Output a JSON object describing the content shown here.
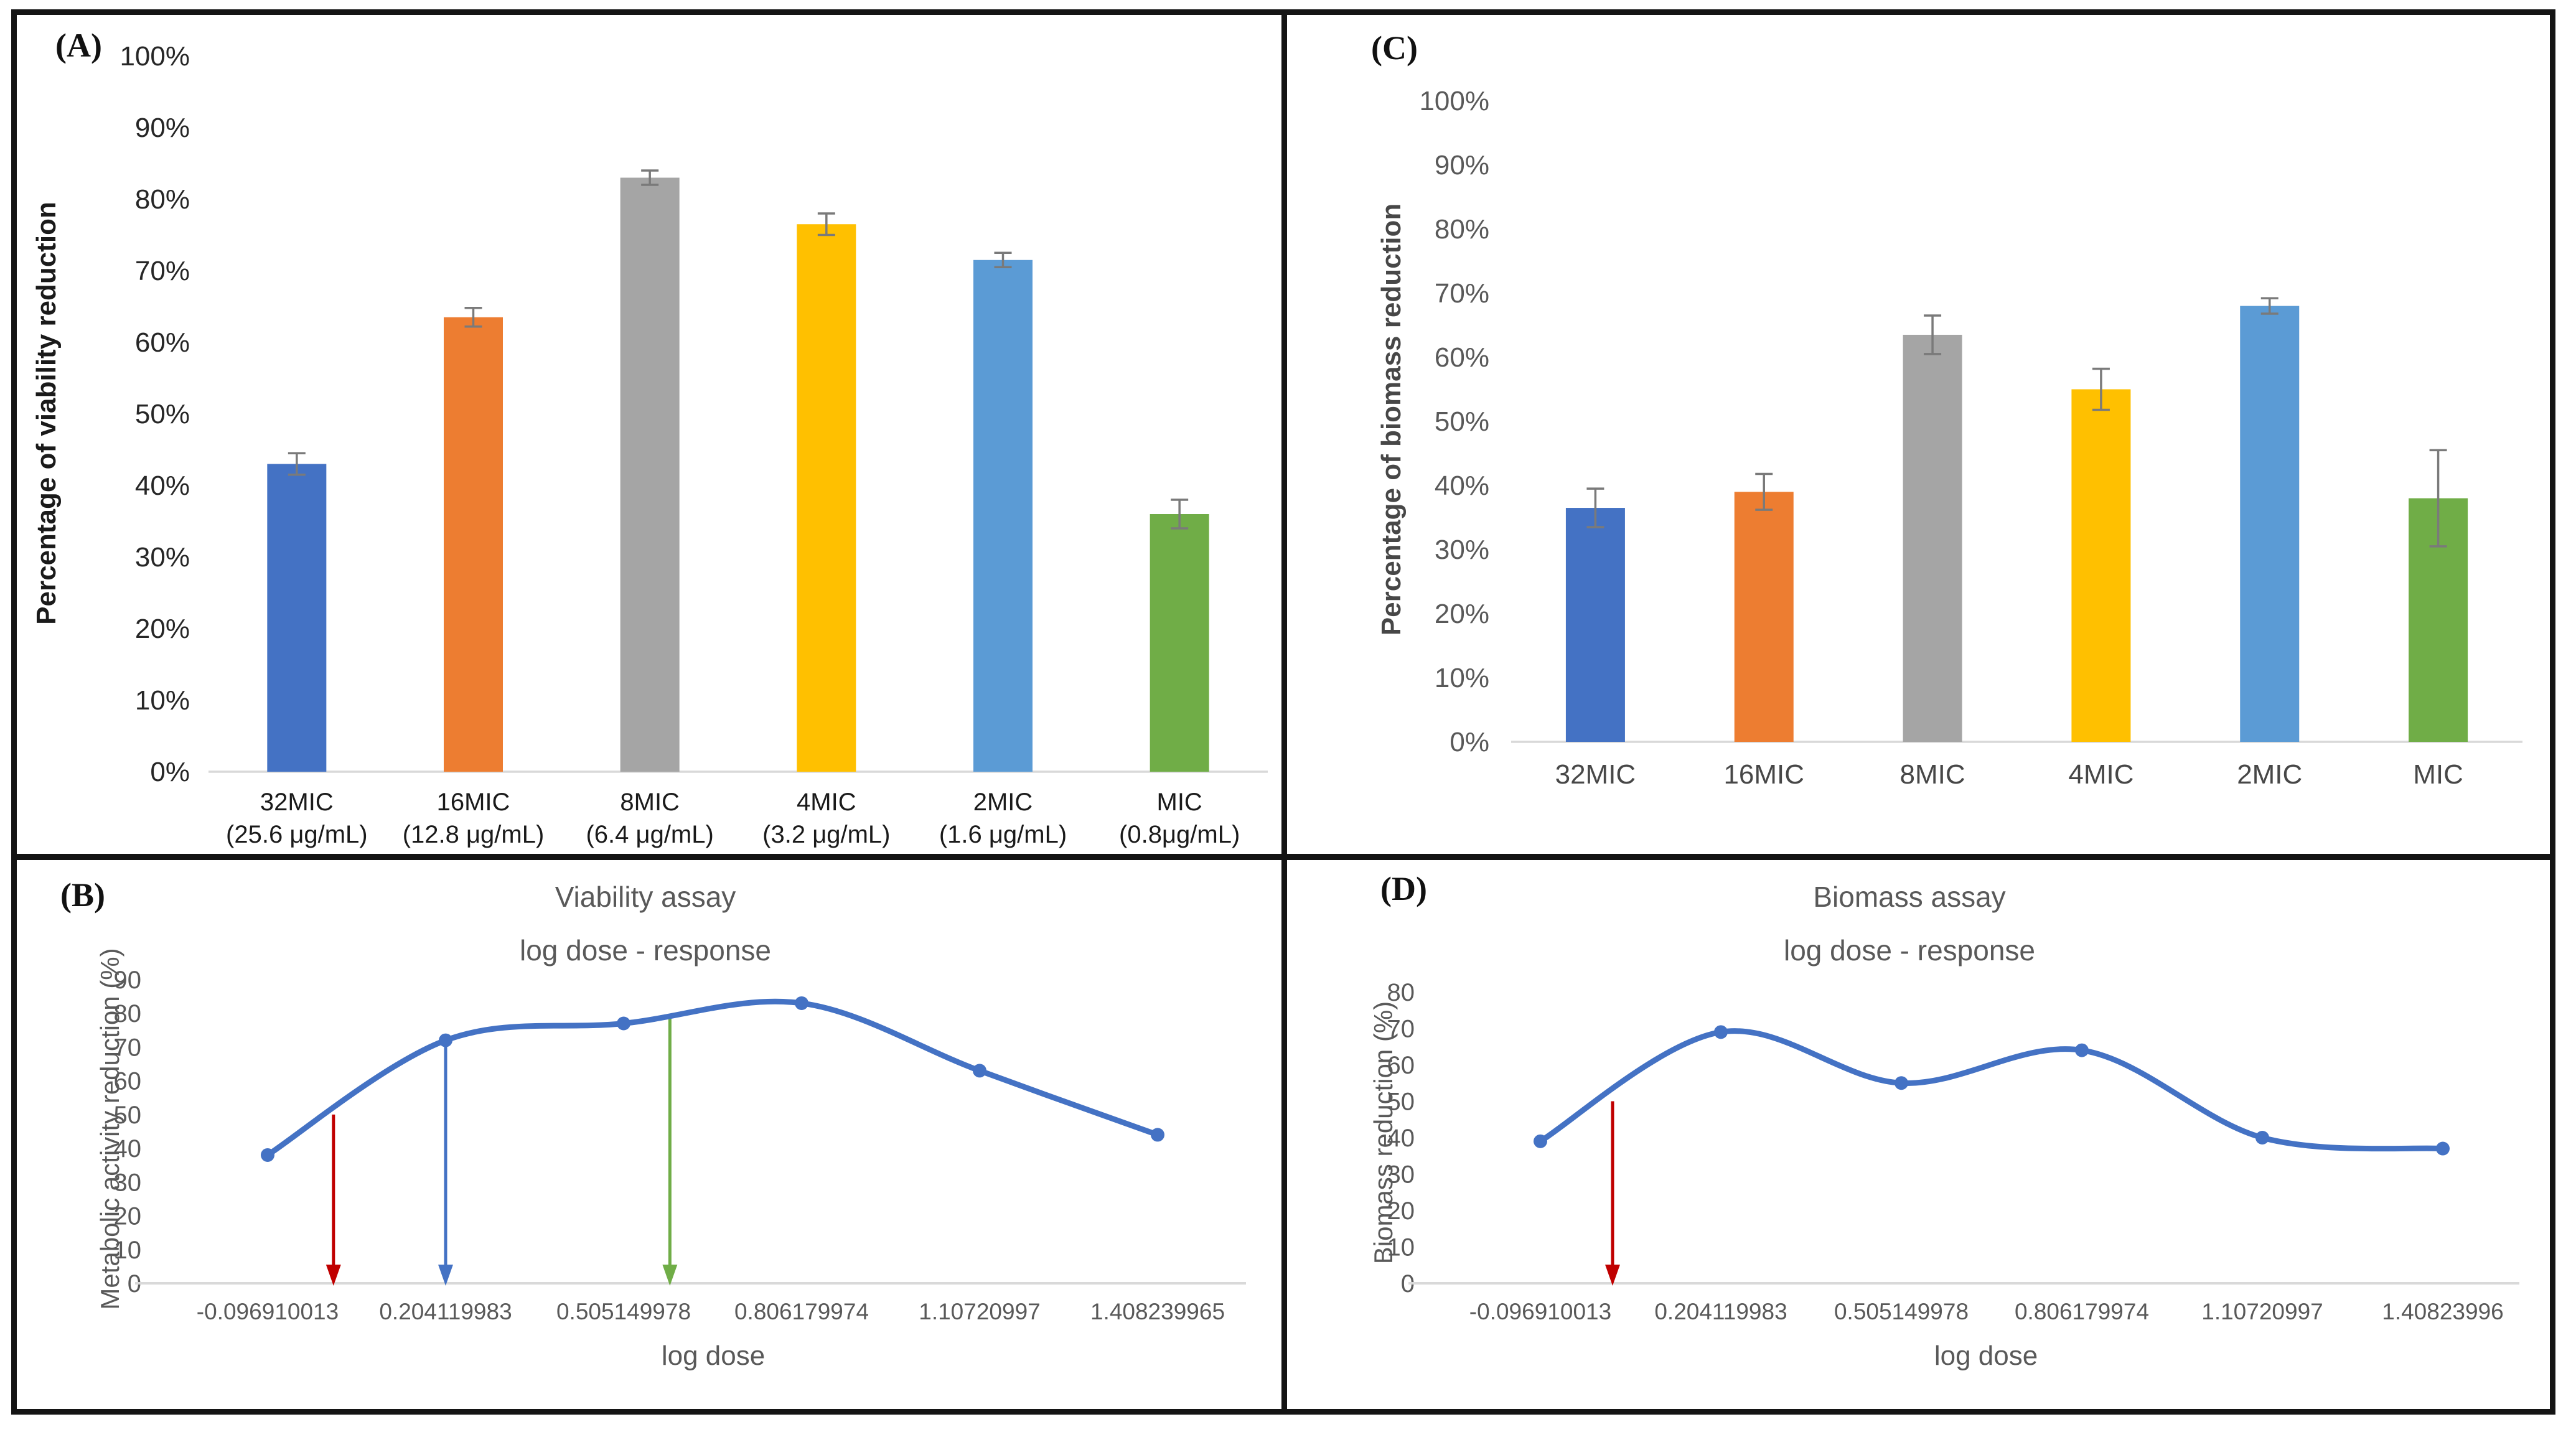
{
  "panels": {
    "a": {
      "letter": "(A)"
    },
    "b": {
      "letter": "(B)"
    },
    "c": {
      "letter": "(C)"
    },
    "d": {
      "letter": "(D)"
    }
  },
  "colors": {
    "bar_blue": "#4472C4",
    "bar_orange": "#ED7D31",
    "bar_gray": "#A5A5A5",
    "bar_gold": "#FFC000",
    "bar_lightblue": "#5B9BD5",
    "bar_green": "#70AD47",
    "line_blue": "#4472C4",
    "arrow_red": "#C00000",
    "arrow_blue": "#4472C4",
    "arrow_green": "#70AD47",
    "axis_line": "#D9D9D9",
    "error_bar": "#7a7a7a",
    "gray_text": "#595959"
  },
  "chart_data": [
    {
      "panel": "A",
      "type": "bar",
      "categories": [
        "32MIC",
        "16MIC",
        "8MIC",
        "4MIC",
        "2MIC",
        "MIC"
      ],
      "category_sublabels": [
        "(25.6 μg/mL)",
        "(12.8 μg/mL)",
        "(6.4 μg/mL)",
        "(3.2 μg/mL)",
        "(1.6 μg/mL)",
        "(0.8μg/mL)"
      ],
      "values": [
        43,
        63.5,
        83,
        76.5,
        71.5,
        36
      ],
      "errors": [
        1.5,
        1.3,
        1.0,
        1.5,
        1.0,
        2.0
      ],
      "bar_colors": [
        "#4472C4",
        "#ED7D31",
        "#A5A5A5",
        "#FFC000",
        "#5B9BD5",
        "#70AD47"
      ],
      "ylabel": "Percentage of viability reduction",
      "ylim": [
        0,
        100
      ],
      "ytick_step": 10,
      "ytick_suffix": "%"
    },
    {
      "panel": "B",
      "type": "line",
      "title": "Viability assay",
      "subtitle": "log dose - response",
      "x_tick_labels": [
        "-0.096910013",
        "0.204119983",
        "0.505149978",
        "0.806179974",
        "1.10720997",
        "1.408239965"
      ],
      "values": [
        38,
        72,
        77,
        83,
        63,
        44
      ],
      "xlabel": "log dose",
      "ylabel": "Metabolic activity reduction  (%)",
      "ylim": [
        0,
        90
      ],
      "ytick_step": 10,
      "line_color": "#4472C4",
      "arrows": [
        {
          "name": "ic50-red-arrow",
          "color": "#C00000",
          "x_index": 0.37,
          "y_from": 50
        },
        {
          "name": "dose-blue-arrow",
          "color": "#4472C4",
          "x_index": 1.0,
          "y_from": 72
        },
        {
          "name": "dose-green-arrow",
          "color": "#70AD47",
          "x_index": 2.26,
          "y_from": 79
        }
      ]
    },
    {
      "panel": "C",
      "type": "bar",
      "categories": [
        "32MIC",
        "16MIC",
        "8MIC",
        "4MIC",
        "2MIC",
        "MIC"
      ],
      "category_sublabels": [],
      "values": [
        36.5,
        39,
        63.5,
        55,
        68,
        38
      ],
      "errors": [
        3.0,
        2.8,
        3.0,
        3.2,
        1.2,
        7.5
      ],
      "bar_colors": [
        "#4472C4",
        "#ED7D31",
        "#A5A5A5",
        "#FFC000",
        "#5B9BD5",
        "#70AD47"
      ],
      "ylabel": "Percentage of biomass reduction",
      "ylim": [
        0,
        100
      ],
      "ytick_step": 10,
      "ytick_suffix": "%"
    },
    {
      "panel": "D",
      "type": "line",
      "title": "Biomass assay",
      "subtitle": "log dose - response",
      "x_tick_labels": [
        "-0.096910013",
        "0.204119983",
        "0.505149978",
        "0.806179974",
        "1.10720997",
        "1.40823996"
      ],
      "values": [
        39,
        69,
        55,
        64,
        40,
        37
      ],
      "xlabel": "log dose",
      "ylabel": "Biomass reduction  (%)",
      "ylim": [
        0,
        80
      ],
      "ytick_step": 10,
      "line_color": "#4472C4",
      "arrows": [
        {
          "name": "ic50-red-arrow",
          "color": "#C00000",
          "x_index": 0.4,
          "y_from": 50
        }
      ]
    }
  ]
}
